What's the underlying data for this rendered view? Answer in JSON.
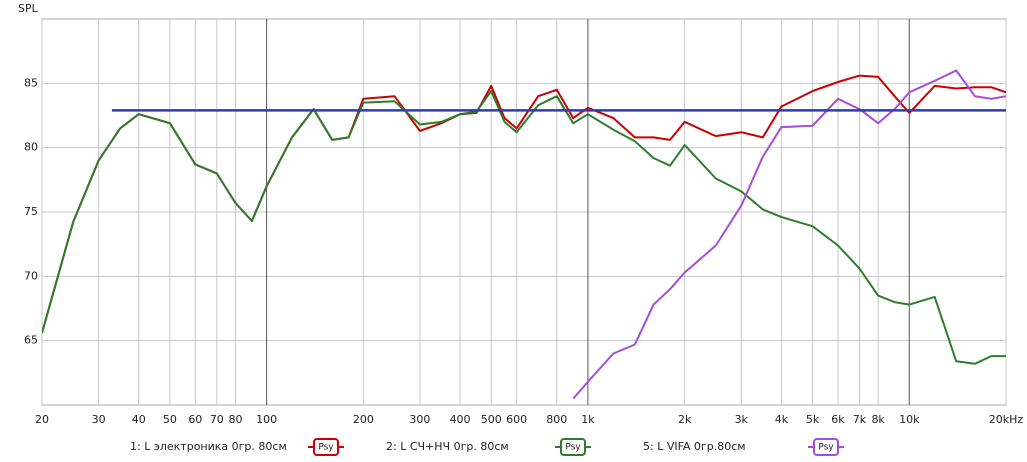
{
  "chart_data": {
    "type": "line",
    "y_label": "SPL",
    "xscale": "log",
    "grid": true,
    "x": [
      20,
      25,
      30,
      35,
      40,
      50,
      60,
      70,
      80,
      90,
      100,
      120,
      140,
      160,
      180,
      200,
      250,
      300,
      350,
      400,
      450,
      500,
      550,
      600,
      700,
      800,
      900,
      1000,
      1200,
      1400,
      1600,
      1800,
      2000,
      2500,
      3000,
      3500,
      4000,
      5000,
      6000,
      7000,
      8000,
      9000,
      10000,
      12000,
      14000,
      16000,
      18000,
      20000
    ],
    "xlim": [
      20,
      20000
    ],
    "ylim": [
      60,
      90
    ],
    "xticks": [
      20,
      30,
      40,
      50,
      60,
      70,
      80,
      100,
      200,
      300,
      400,
      500,
      600,
      800,
      {
        "value": 1000,
        "label": "1k"
      },
      {
        "value": 2000,
        "label": "2k"
      },
      {
        "value": 3000,
        "label": "3k"
      },
      {
        "value": 4000,
        "label": "4k"
      },
      {
        "value": 5000,
        "label": "5k"
      },
      {
        "value": 6000,
        "label": "6k"
      },
      {
        "value": 7000,
        "label": "7k"
      },
      {
        "value": 8000,
        "label": "8k"
      },
      {
        "value": 10000,
        "label": "10k"
      },
      {
        "value": 20000,
        "label": "20kHz"
      }
    ],
    "yticks": [
      65,
      70,
      75,
      80,
      85
    ],
    "legend_badge": "Psy",
    "series": [
      {
        "name": "1: L электроника  0гр. 80см",
        "color": "#cc0000",
        "values": [
          65.6,
          74.2,
          79.0,
          81.5,
          82.6,
          81.9,
          78.7,
          78.0,
          75.7,
          74.3,
          77.0,
          80.8,
          83.0,
          80.6,
          80.8,
          83.8,
          84.0,
          81.3,
          81.9,
          82.6,
          82.7,
          84.8,
          82.3,
          81.5,
          84.0,
          84.5,
          82.3,
          83.1,
          82.3,
          80.8,
          80.8,
          80.6,
          82.0,
          80.9,
          81.2,
          80.8,
          83.2,
          84.4,
          85.1,
          85.6,
          85.5,
          84.0,
          82.7,
          84.8,
          84.6,
          84.7,
          84.7,
          84.3
        ]
      },
      {
        "name": "2: L СЧ+НЧ  0гр. 80см",
        "color": "#2e7d2e",
        "values": [
          65.6,
          74.2,
          79.0,
          81.5,
          82.6,
          81.9,
          78.7,
          78.0,
          75.7,
          74.3,
          77.0,
          80.8,
          83.0,
          80.6,
          80.8,
          83.5,
          83.6,
          81.8,
          82.0,
          82.6,
          82.8,
          84.4,
          82.0,
          81.2,
          83.3,
          84.0,
          81.9,
          82.6,
          81.4,
          80.5,
          79.2,
          78.6,
          80.2,
          77.6,
          76.6,
          75.2,
          74.6,
          73.9,
          72.4,
          70.6,
          68.5,
          68.0,
          67.8,
          68.4,
          63.4,
          63.2,
          63.8,
          63.8
        ]
      },
      {
        "name": "5: L VIFA  0гр.80см",
        "color": "#a64dd9",
        "values": [
          null,
          null,
          null,
          null,
          null,
          null,
          null,
          null,
          null,
          null,
          null,
          null,
          null,
          null,
          null,
          null,
          null,
          null,
          null,
          null,
          null,
          null,
          null,
          null,
          null,
          null,
          60.5,
          61.8,
          64.0,
          64.7,
          67.8,
          69.0,
          70.3,
          72.4,
          75.5,
          79.3,
          81.6,
          81.7,
          83.8,
          83.0,
          81.9,
          83.0,
          84.3,
          85.2,
          86.0,
          84.0,
          83.8,
          84.0
        ]
      }
    ],
    "target": {
      "x": [
        33,
        20000
      ],
      "values": [
        82.9,
        82.9
      ],
      "color": "#2b3db0"
    }
  }
}
